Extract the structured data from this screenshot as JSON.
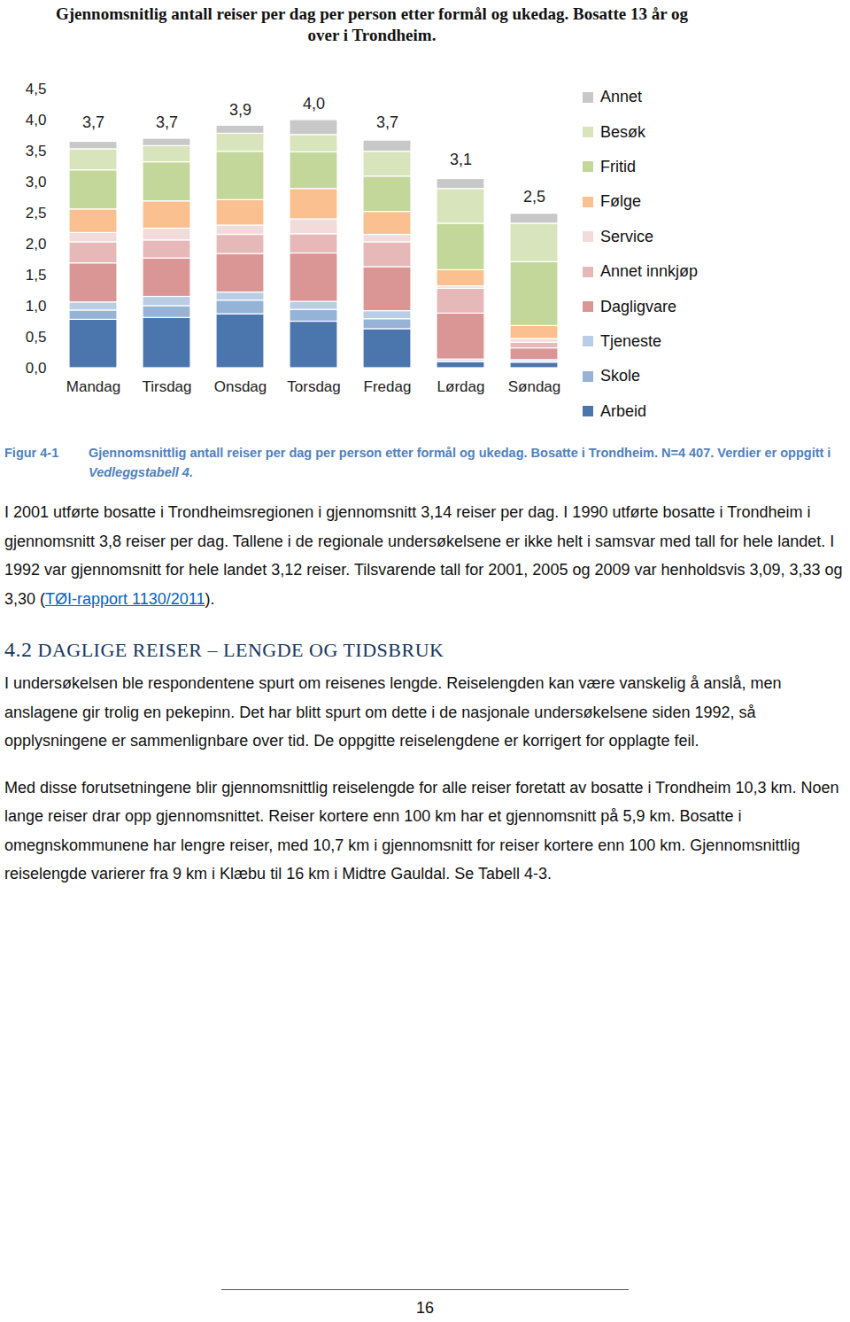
{
  "chart_data": {
    "type": "bar",
    "stacked": true,
    "title": "Gjennomsnitlig antall reiser per dag per person etter formål og ukedag. Bosatte 13 år og over i Trondheim.",
    "categories": [
      "Mandag",
      "Tirsdag",
      "Onsdag",
      "Torsdag",
      "Fredag",
      "Lørdag",
      "Søndag"
    ],
    "series": [
      {
        "name": "Arbeid",
        "color": "#4a76ad",
        "values": [
          0.78,
          0.81,
          0.87,
          0.75,
          0.63,
          0.1,
          0.09
        ]
      },
      {
        "name": "Skole",
        "color": "#95b3d7",
        "values": [
          0.15,
          0.19,
          0.22,
          0.19,
          0.16,
          0.01,
          0.01
        ]
      },
      {
        "name": "Tjeneste",
        "color": "#b9cde5",
        "values": [
          0.13,
          0.15,
          0.13,
          0.13,
          0.13,
          0.03,
          0.03
        ]
      },
      {
        "name": "Dagligvare",
        "color": "#da9694",
        "values": [
          0.63,
          0.62,
          0.62,
          0.78,
          0.71,
          0.74,
          0.19
        ]
      },
      {
        "name": "Annet innkjøp",
        "color": "#e6b9b8",
        "values": [
          0.34,
          0.29,
          0.31,
          0.31,
          0.4,
          0.4,
          0.09
        ]
      },
      {
        "name": "Service",
        "color": "#f2dcdb",
        "values": [
          0.15,
          0.19,
          0.15,
          0.24,
          0.12,
          0.04,
          0.06
        ]
      },
      {
        "name": "Følge",
        "color": "#fac090",
        "values": [
          0.38,
          0.44,
          0.41,
          0.49,
          0.37,
          0.26,
          0.21
        ]
      },
      {
        "name": "Fritid",
        "color": "#c4d79b",
        "values": [
          0.63,
          0.63,
          0.78,
          0.59,
          0.57,
          0.75,
          1.03
        ]
      },
      {
        "name": "Besøk",
        "color": "#d8e4bc",
        "values": [
          0.34,
          0.26,
          0.29,
          0.28,
          0.4,
          0.56,
          0.62
        ]
      },
      {
        "name": "Annet",
        "color": "#c8c8c8",
        "values": [
          0.12,
          0.12,
          0.13,
          0.24,
          0.18,
          0.16,
          0.16
        ]
      }
    ],
    "totals": [
      3.7,
      3.7,
      3.9,
      4.0,
      3.7,
      3.1,
      2.5
    ],
    "total_labels": [
      "3,7",
      "3,7",
      "3,9",
      "4,0",
      "3,7",
      "3,1",
      "2,5"
    ],
    "ylim": [
      0,
      4.5
    ],
    "yticks": [
      {
        "value": 0,
        "label": "0,0"
      },
      {
        "value": 0.5,
        "label": "0,5"
      },
      {
        "value": 1,
        "label": "1,0"
      },
      {
        "value": 1.5,
        "label": "1,5"
      },
      {
        "value": 2,
        "label": "2,0"
      },
      {
        "value": 2.5,
        "label": "2,5"
      },
      {
        "value": 3,
        "label": "3,0"
      },
      {
        "value": 3.5,
        "label": "3,5"
      },
      {
        "value": 4,
        "label": "4,0"
      },
      {
        "value": 4.5,
        "label": "4,5"
      }
    ],
    "grid": false,
    "legend": "right"
  },
  "document": {
    "caption": {
      "number": "Figur 4-1",
      "parts": [
        {
          "text": "Gjennomsnittlig antall reiser per dag per person etter formål og ukedag. Bosatte i Trondheim. N=4 407. Verdier er oppgitt i ",
          "style": "plain"
        },
        {
          "text": "Vedleggstabell 4.",
          "style": "italic"
        }
      ]
    },
    "paragraphs_before": [
      [
        {
          "text": "I 2001 utførte bosatte i Trondheimsregionen i gjennomsnitt 3,14 reiser per dag. I 1990 utførte bosatte i Trondheim i gjennomsnitt 3,8 reiser per dag. Tallene i de regionale undersøkelsene er ikke helt i samsvar med tall for hele landet. I 1992 var gjennomsnitt for hele landet 3,12 reiser. Tilsvarende tall for 2001, 2005 og 2009 var henholdsvis 3,09, 3,33 og 3,30 (",
          "style": "plain"
        },
        {
          "text": "TØI-rapport 1130/2011",
          "style": "link"
        },
        {
          "text": ").",
          "style": "plain"
        }
      ]
    ],
    "heading": {
      "number": "4.2",
      "title": "DAGLIGE REISER – LENGDE OG TIDSBRUK"
    },
    "paragraphs_after": [
      [
        {
          "text": "I undersøkelsen ble respondentene spurt om reisenes lengde. Reiselengden kan være vanskelig å anslå, men anslagene gir trolig en pekepinn. Det har blitt spurt om dette i de nasjonale undersøkelsene siden 1992, så opplysningene er sammenlignbare over tid. De oppgitte reiselengdene er korrigert for opplagte feil.",
          "style": "plain"
        }
      ],
      [
        {
          "text": "Med disse forutsetningene blir gjennomsnittlig reiselengde for alle reiser foretatt av bosatte i Trondheim 10,3 km. Noen lange reiser drar opp gjennomsnittet. Reiser kortere enn 100 km har et gjennomsnitt på 5,9 km. Bosatte i omegnskommunene har lengre reiser, med 10,7 km i gjennomsnitt for reiser kortere enn 100 km. Gjennomsnittlig reiselengde varierer fra 9 km i Klæbu til 16 km i Midtre Gauldal. Se Tabell 4-3.",
          "style": "plain"
        }
      ]
    ],
    "page_number": "16"
  }
}
